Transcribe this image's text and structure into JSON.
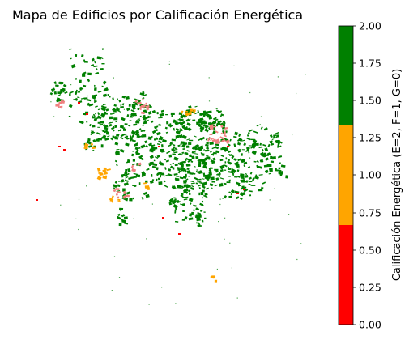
{
  "title": "Mapa de Edificios por Calificación Energética",
  "colorbar": {
    "label": "Calificación Energética (E=2, F=1, G=0)",
    "range": [
      0,
      2
    ],
    "ticks": [
      "2.00",
      "1.75",
      "1.50",
      "1.25",
      "1.00",
      "0.75",
      "0.50",
      "0.25",
      "0.00"
    ],
    "tick_values": [
      2.0,
      1.75,
      1.5,
      1.25,
      1.0,
      0.75,
      0.5,
      0.25,
      0.0
    ],
    "bands": [
      {
        "from": 1.333,
        "to": 2.0,
        "color": "#008000",
        "rating": "E"
      },
      {
        "from": 0.667,
        "to": 1.333,
        "color": "#FFA500",
        "rating": "F"
      },
      {
        "from": 0.0,
        "to": 0.667,
        "color": "#FF0000",
        "rating": "G"
      }
    ]
  },
  "colors": {
    "E": "#008000",
    "F": "#FFA500",
    "G": "#FF0000",
    "G_light": "#F08080"
  }
}
